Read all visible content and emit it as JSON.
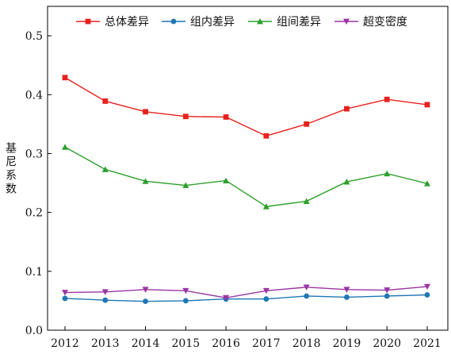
{
  "chart_data": {
    "type": "line",
    "title": "",
    "xlabel": "",
    "ylabel": "基尼系数",
    "ylim": [
      0,
      0.55
    ],
    "yticks": [
      "0.0",
      "0.1",
      "0.2",
      "0.3",
      "0.4",
      "0.5"
    ],
    "ytick_values": [
      0,
      0.1,
      0.2,
      0.3,
      0.4,
      0.5
    ],
    "x": [
      "2012",
      "2013",
      "2014",
      "2015",
      "2016",
      "2017",
      "2018",
      "2019",
      "2020",
      "2021"
    ],
    "grid": false,
    "legend_position": "top",
    "series": [
      {
        "name": "总体差异",
        "color": "#e8211d",
        "marker": "square",
        "values": [
          0.429,
          0.389,
          0.371,
          0.363,
          0.362,
          0.33,
          0.35,
          0.376,
          0.392,
          0.383
        ]
      },
      {
        "name": "组内差异",
        "color": "#1f77b4",
        "marker": "circle",
        "values": [
          0.054,
          0.051,
          0.049,
          0.05,
          0.053,
          0.053,
          0.058,
          0.056,
          0.058,
          0.06
        ]
      },
      {
        "name": "组间差异",
        "color": "#2ca02c",
        "marker": "triangle-up",
        "values": [
          0.311,
          0.273,
          0.253,
          0.246,
          0.254,
          0.21,
          0.219,
          0.252,
          0.266,
          0.249
        ]
      },
      {
        "name": "超变密度",
        "color": "#9a35a3",
        "marker": "triangle-down",
        "values": [
          0.064,
          0.065,
          0.069,
          0.067,
          0.055,
          0.067,
          0.073,
          0.069,
          0.068,
          0.074
        ]
      }
    ]
  }
}
